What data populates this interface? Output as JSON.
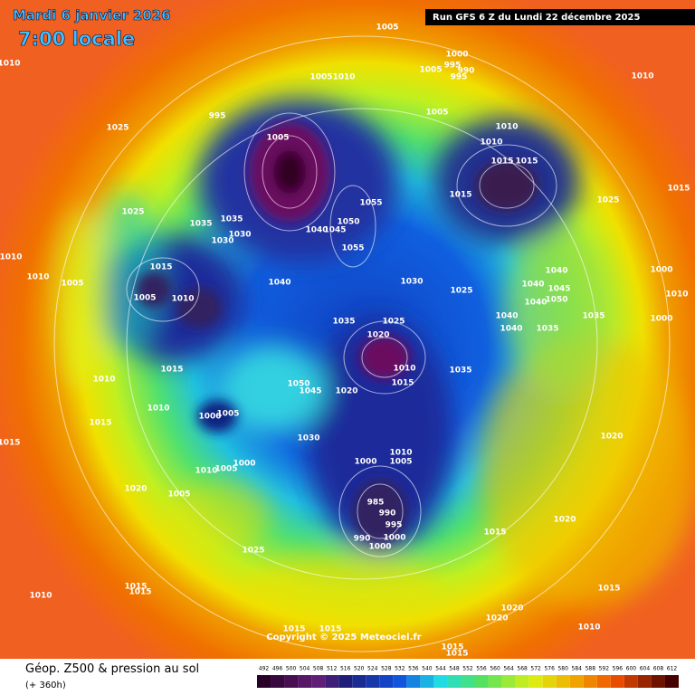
{
  "header": {
    "date": "Mardi 6 janvier 2026",
    "time": "7:00 locale",
    "run": "Run GFS 6 Z du Lundi 22 décembre 2025"
  },
  "copyright": "Copyright © 2025 Meteociel.fr",
  "footer": {
    "title": "Géop. Z500 & pression au sol",
    "lead": "(+ 360h)"
  },
  "legend_scale": [
    492,
    496,
    500,
    504,
    508,
    512,
    516,
    520,
    524,
    528,
    532,
    536,
    540,
    544,
    548,
    552,
    556,
    560,
    564,
    568,
    572,
    576,
    580,
    584,
    588,
    592,
    596,
    600,
    604,
    608,
    612
  ],
  "pressure_labels": [
    1005,
    1000,
    995,
    990,
    995,
    1010,
    1010,
    1005,
    1005,
    1010,
    1005,
    1025,
    995,
    1010,
    1010,
    1015,
    1015,
    1015,
    1025,
    1015,
    1005,
    1055,
    1055,
    1050,
    1045,
    1040,
    1035,
    1035,
    1030,
    1030,
    1025,
    1010,
    1010,
    1005,
    1015,
    1005,
    1010,
    1040,
    1030,
    1025,
    1040,
    1040,
    1045,
    1050,
    1040,
    1040,
    1040,
    1035,
    1035,
    1000,
    1000,
    1010,
    1035,
    1025,
    1020,
    1010,
    1015,
    1035,
    1015,
    1010,
    1010,
    1005,
    1000,
    1050,
    1045,
    1020,
    1030,
    1015,
    1015,
    1020,
    1010,
    1000,
    1005,
    1000,
    1005,
    1010,
    1020,
    1005,
    985,
    990,
    995,
    990,
    1000,
    1000,
    1015,
    1020,
    1025,
    1015,
    1015,
    1010,
    1015,
    1020,
    1020,
    1010,
    1015,
    1015,
    1015,
    1015
  ]
}
